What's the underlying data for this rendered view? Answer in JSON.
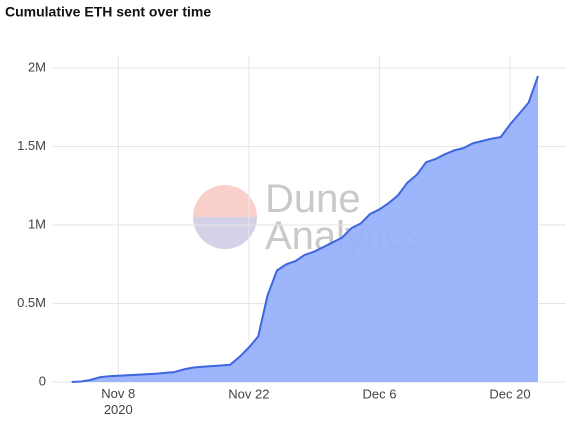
{
  "chart_data": {
    "type": "area",
    "title": "Cumulative ETH sent over time",
    "watermark": [
      "Dune",
      "Analytics"
    ],
    "x": [
      "2020-11-03",
      "2020-11-04",
      "2020-11-05",
      "2020-11-06",
      "2020-11-07",
      "2020-11-08",
      "2020-11-09",
      "2020-11-10",
      "2020-11-11",
      "2020-11-12",
      "2020-11-13",
      "2020-11-14",
      "2020-11-15",
      "2020-11-16",
      "2020-11-17",
      "2020-11-18",
      "2020-11-19",
      "2020-11-20",
      "2020-11-21",
      "2020-11-22",
      "2020-11-23",
      "2020-11-24",
      "2020-11-25",
      "2020-11-26",
      "2020-11-27",
      "2020-11-28",
      "2020-11-29",
      "2020-11-30",
      "2020-12-01",
      "2020-12-02",
      "2020-12-03",
      "2020-12-04",
      "2020-12-05",
      "2020-12-06",
      "2020-12-07",
      "2020-12-08",
      "2020-12-09",
      "2020-12-10",
      "2020-12-11",
      "2020-12-12",
      "2020-12-13",
      "2020-12-14",
      "2020-12-15",
      "2020-12-16",
      "2020-12-17",
      "2020-12-18",
      "2020-12-19",
      "2020-12-20",
      "2020-12-21",
      "2020-12-22",
      "2020-12-23"
    ],
    "series": [
      {
        "color": "#3d66e0",
        "fill": "#97b1fb",
        "values": [
          0,
          3000,
          13000,
          30000,
          36000,
          40000,
          43000,
          46000,
          49000,
          53000,
          58000,
          63000,
          80000,
          92000,
          97000,
          101000,
          105000,
          110000,
          160000,
          220000,
          290000,
          550000,
          710000,
          750000,
          770000,
          810000,
          830000,
          860000,
          890000,
          920000,
          980000,
          1010000,
          1070000,
          1100000,
          1140000,
          1190000,
          1270000,
          1320000,
          1400000,
          1420000,
          1450000,
          1475000,
          1490000,
          1520000,
          1535000,
          1550000,
          1560000,
          1640000,
          1710000,
          1780000,
          1950000
        ]
      }
    ],
    "xlim": [
      "2020-11-01",
      "2020-12-26"
    ],
    "xticks": [
      {
        "value": "2020-11-08",
        "label": "Nov 8\n2020"
      },
      {
        "value": "2020-11-22",
        "label": "Nov 22"
      },
      {
        "value": "2020-12-06",
        "label": "Dec 6"
      },
      {
        "value": "2020-12-20",
        "label": "Dec 20"
      }
    ],
    "ylim": [
      0,
      2000000
    ],
    "yticks": [
      0,
      {
        "value": 500000,
        "label": "0.5M"
      },
      {
        "value": 1000000,
        "label": "1M"
      },
      {
        "value": 1500000,
        "label": "1.5M"
      },
      {
        "value": 2000000,
        "label": "2M"
      }
    ],
    "grid": true
  }
}
